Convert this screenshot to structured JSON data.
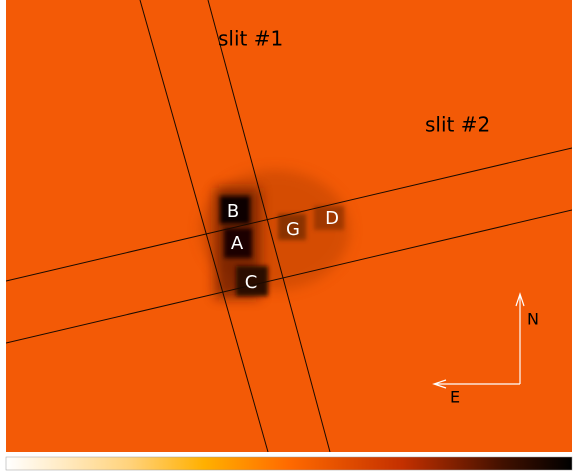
{
  "slits": [
    "slit #1",
    "slit #2"
  ],
  "sources": [
    "B",
    "A",
    "C",
    "G",
    "D"
  ],
  "compass": {
    "north": "N",
    "east": "E"
  }
}
